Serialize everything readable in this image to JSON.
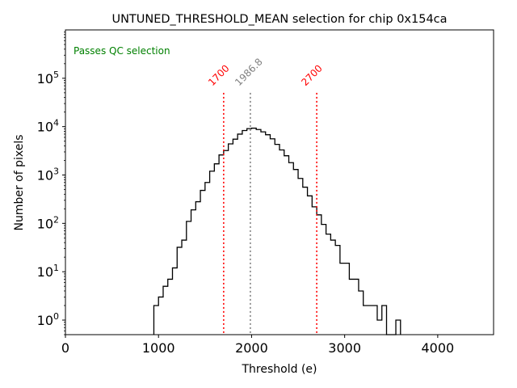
{
  "chart_data": {
    "type": "histogram",
    "title": "UNTUNED_THRESHOLD_MEAN selection for chip 0x154ca",
    "xlabel": "Threshold (e)",
    "ylabel": "Number of pixels",
    "xlim": [
      0,
      4600
    ],
    "ylim": [
      0.5,
      1000000
    ],
    "yscale": "log",
    "grid": false,
    "x_ticks": [
      {
        "value": 0,
        "label": "0"
      },
      {
        "value": 1000,
        "label": "1000"
      },
      {
        "value": 2000,
        "label": "2000"
      },
      {
        "value": 3000,
        "label": "3000"
      },
      {
        "value": 4000,
        "label": "4000"
      }
    ],
    "y_ticks": [
      {
        "value": 1,
        "base": "10",
        "exp": "0"
      },
      {
        "value": 10,
        "base": "10",
        "exp": "1"
      },
      {
        "value": 100,
        "base": "10",
        "exp": "2"
      },
      {
        "value": 1000,
        "base": "10",
        "exp": "3"
      },
      {
        "value": 10000,
        "base": "10",
        "exp": "4"
      },
      {
        "value": 100000,
        "base": "10",
        "exp": "5"
      }
    ],
    "bin_width": 50,
    "bins": [
      {
        "x": 975,
        "count": 2
      },
      {
        "x": 1025,
        "count": 3
      },
      {
        "x": 1075,
        "count": 5
      },
      {
        "x": 1125,
        "count": 7
      },
      {
        "x": 1175,
        "count": 12
      },
      {
        "x": 1225,
        "count": 32
      },
      {
        "x": 1275,
        "count": 45
      },
      {
        "x": 1325,
        "count": 110
      },
      {
        "x": 1375,
        "count": 190
      },
      {
        "x": 1425,
        "count": 280
      },
      {
        "x": 1475,
        "count": 480
      },
      {
        "x": 1525,
        "count": 700
      },
      {
        "x": 1575,
        "count": 1200
      },
      {
        "x": 1625,
        "count": 1700
      },
      {
        "x": 1675,
        "count": 2600
      },
      {
        "x": 1725,
        "count": 3200
      },
      {
        "x": 1775,
        "count": 4400
      },
      {
        "x": 1825,
        "count": 5500
      },
      {
        "x": 1875,
        "count": 7000
      },
      {
        "x": 1925,
        "count": 8300
      },
      {
        "x": 1975,
        "count": 9100
      },
      {
        "x": 2025,
        "count": 9300
      },
      {
        "x": 2075,
        "count": 8700
      },
      {
        "x": 2125,
        "count": 7800
      },
      {
        "x": 2175,
        "count": 6800
      },
      {
        "x": 2225,
        "count": 5600
      },
      {
        "x": 2275,
        "count": 4300
      },
      {
        "x": 2325,
        "count": 3300
      },
      {
        "x": 2375,
        "count": 2500
      },
      {
        "x": 2425,
        "count": 1800
      },
      {
        "x": 2475,
        "count": 1300
      },
      {
        "x": 2525,
        "count": 850
      },
      {
        "x": 2575,
        "count": 560
      },
      {
        "x": 2625,
        "count": 370
      },
      {
        "x": 2675,
        "count": 220
      },
      {
        "x": 2725,
        "count": 150
      },
      {
        "x": 2775,
        "count": 95
      },
      {
        "x": 2825,
        "count": 60
      },
      {
        "x": 2875,
        "count": 45
      },
      {
        "x": 2925,
        "count": 35
      },
      {
        "x": 2975,
        "count": 15
      },
      {
        "x": 3025,
        "count": 15
      },
      {
        "x": 3075,
        "count": 7
      },
      {
        "x": 3125,
        "count": 7
      },
      {
        "x": 3175,
        "count": 4
      },
      {
        "x": 3225,
        "count": 2
      },
      {
        "x": 3275,
        "count": 2
      },
      {
        "x": 3325,
        "count": 2
      },
      {
        "x": 3375,
        "count": 1
      },
      {
        "x": 3425,
        "count": 2
      },
      {
        "x": 3475,
        "count": 0
      },
      {
        "x": 3525,
        "count": 0
      },
      {
        "x": 3575,
        "count": 1
      }
    ],
    "vlines": [
      {
        "x": 1700,
        "label": "1700",
        "color": "#ff0000",
        "style": "dotted",
        "role": "lower-cut"
      },
      {
        "x": 1986.8,
        "label": "1986.8",
        "color": "#808080",
        "style": "dotted",
        "role": "mean"
      },
      {
        "x": 2700,
        "label": "2700",
        "color": "#ff0000",
        "style": "dotted",
        "role": "upper-cut"
      }
    ],
    "vline_top": 50000,
    "annotation": {
      "text": "Passes QC selection",
      "color": "#008000",
      "placement": "top-left"
    }
  }
}
